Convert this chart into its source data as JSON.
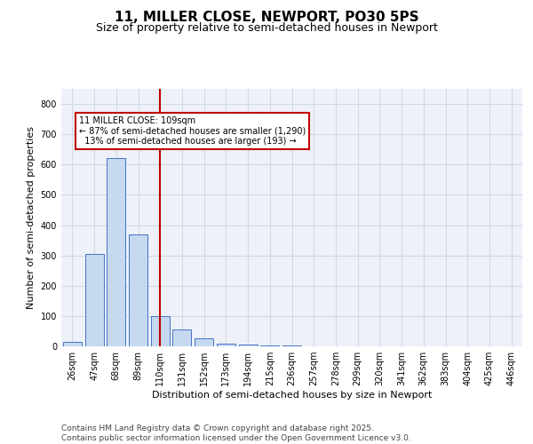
{
  "title_line1": "11, MILLER CLOSE, NEWPORT, PO30 5PS",
  "title_line2": "Size of property relative to semi-detached houses in Newport",
  "xlabel": "Distribution of semi-detached houses by size in Newport",
  "ylabel": "Number of semi-detached properties",
  "categories": [
    "26sqm",
    "47sqm",
    "68sqm",
    "89sqm",
    "110sqm",
    "131sqm",
    "152sqm",
    "173sqm",
    "194sqm",
    "215sqm",
    "236sqm",
    "257sqm",
    "278sqm",
    "299sqm",
    "320sqm",
    "341sqm",
    "362sqm",
    "383sqm",
    "404sqm",
    "425sqm",
    "446sqm"
  ],
  "values": [
    15,
    305,
    620,
    370,
    100,
    55,
    25,
    10,
    7,
    3,
    2,
    1,
    1,
    0,
    0,
    0,
    0,
    0,
    0,
    0,
    0
  ],
  "bar_color": "#c6d9f0",
  "bar_edge_color": "#4472c4",
  "vline_x_index": 4,
  "vline_color": "#c00000",
  "annotation_line1": "11 MILLER CLOSE: 109sqm",
  "annotation_line2": "← 87% of semi-detached houses are smaller (1,290)",
  "annotation_line3": "  13% of semi-detached houses are larger (193) →",
  "annotation_box_color": "#ffffff",
  "annotation_box_edge_color": "#c00000",
  "ylim": [
    0,
    850
  ],
  "yticks": [
    0,
    100,
    200,
    300,
    400,
    500,
    600,
    700,
    800
  ],
  "grid_color": "#d0d8e4",
  "background_color": "#eef2f8",
  "footer_text": "Contains HM Land Registry data © Crown copyright and database right 2025.\nContains public sector information licensed under the Open Government Licence v3.0.",
  "title_fontsize": 11,
  "subtitle_fontsize": 9,
  "tick_fontsize": 7,
  "label_fontsize": 8,
  "footer_fontsize": 6.5
}
